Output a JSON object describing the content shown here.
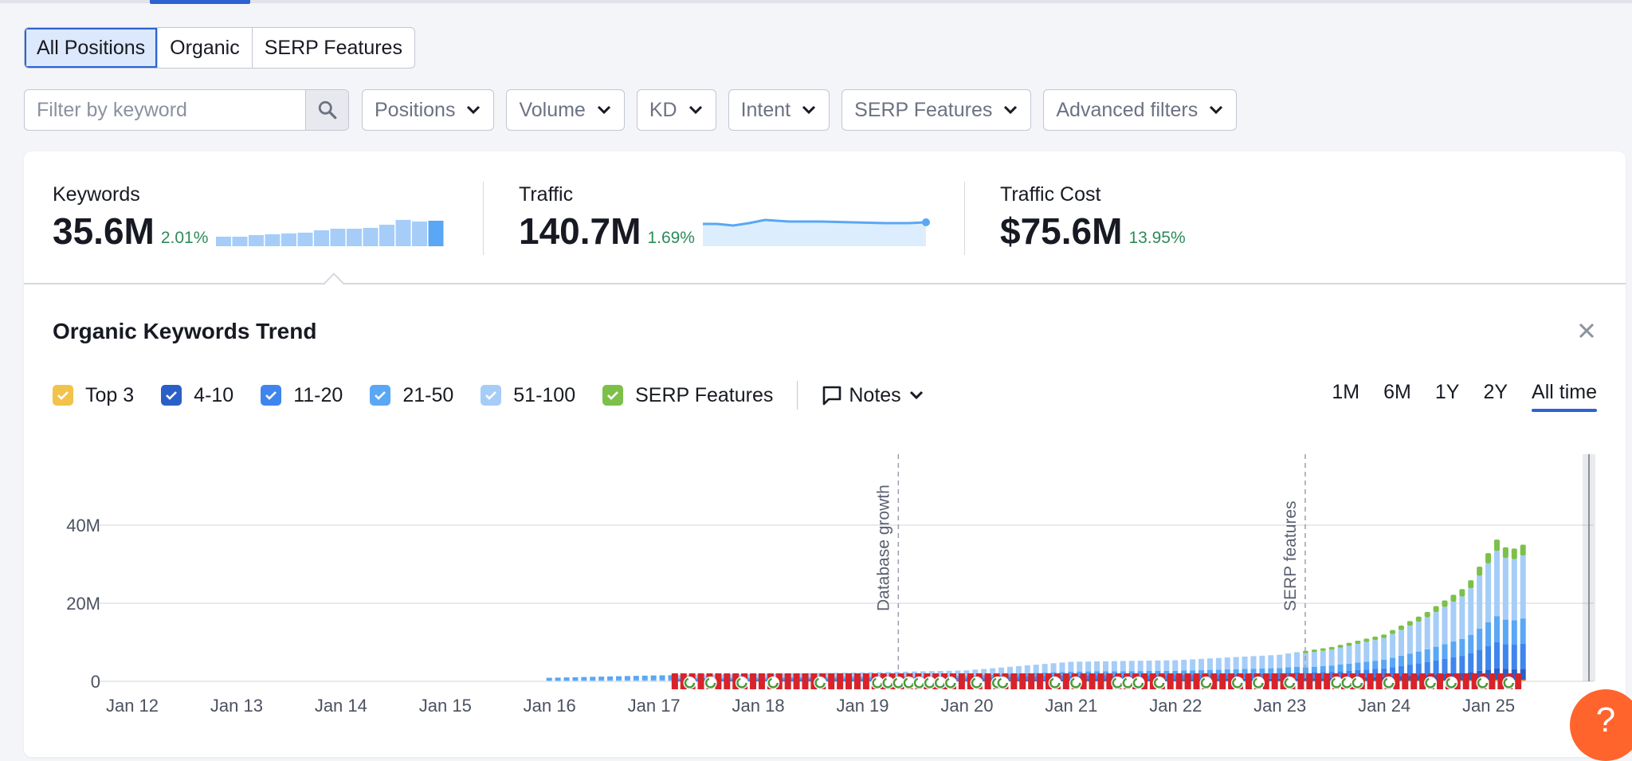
{
  "position_tabs": [
    {
      "label": "All Positions",
      "selected": true
    },
    {
      "label": "Organic",
      "selected": false
    },
    {
      "label": "SERP Features",
      "selected": false
    }
  ],
  "filters": {
    "search_placeholder": "Filter by keyword",
    "dropdowns": [
      "Positions",
      "Volume",
      "KD",
      "Intent",
      "SERP Features",
      "Advanced filters"
    ]
  },
  "metrics": {
    "keywords": {
      "label": "Keywords",
      "value": "35.6M",
      "delta": "2.01%"
    },
    "traffic": {
      "label": "Traffic",
      "value": "140.7M",
      "delta": "1.69%"
    },
    "traffic_cost": {
      "label": "Traffic Cost",
      "value": "$75.6M",
      "delta": "13.95%"
    }
  },
  "colors": {
    "accent": "#2d62d2",
    "positive": "#2c8b5a",
    "top3": "#f2c34a",
    "pos_4_10": "#2a5fc7",
    "pos_11_20": "#3f85ee",
    "pos_21_50": "#5aa7f5",
    "pos_51_100": "#a6cdf8",
    "serp_features": "#7cc04a",
    "help": "#ff642d"
  },
  "trend": {
    "title": "Organic Keywords Trend",
    "legend": [
      {
        "label": "Top 3",
        "color": "#f2c34a"
      },
      {
        "label": "4-10",
        "color": "#2a5fc7"
      },
      {
        "label": "11-20",
        "color": "#3f85ee"
      },
      {
        "label": "21-50",
        "color": "#5aa7f5"
      },
      {
        "label": "51-100",
        "color": "#a6cdf8"
      },
      {
        "label": "SERP Features",
        "color": "#7cc04a"
      }
    ],
    "notes_label": "Notes",
    "ranges": [
      {
        "label": "1M",
        "selected": false
      },
      {
        "label": "6M",
        "selected": false
      },
      {
        "label": "1Y",
        "selected": false
      },
      {
        "label": "2Y",
        "selected": false
      },
      {
        "label": "All time",
        "selected": true
      }
    ]
  },
  "chart_data": {
    "type": "bar",
    "stacked": true,
    "x_labels": [
      "Jan 12",
      "Jan 13",
      "Jan 14",
      "Jan 15",
      "Jan 16",
      "Jan 17",
      "Jan 18",
      "Jan 19",
      "Jan 20",
      "Jan 21",
      "Jan 22",
      "Jan 23",
      "Jan 24",
      "Jan 25"
    ],
    "y_ticks": [
      "0",
      "20M",
      "40M"
    ],
    "ylim": [
      0,
      58
    ],
    "annotations": [
      {
        "label": "Database growth",
        "x": 2019.35
      },
      {
        "label": "SERP features",
        "x": 2023.25
      }
    ],
    "sample_points": [
      {
        "x": 2016.0,
        "total": 0.9
      },
      {
        "x": 2017.0,
        "total": 1.5
      },
      {
        "x": 2019.3,
        "total": 2.4
      },
      {
        "x": 2020.0,
        "total": 2.8
      },
      {
        "x": 2021.0,
        "total": 5.0
      },
      {
        "x": 2022.0,
        "total": 5.4
      },
      {
        "x": 2023.0,
        "total": 6.8
      },
      {
        "x": 2023.5,
        "total": 8.8
      },
      {
        "x": 2024.0,
        "total": 12.0
      },
      {
        "x": 2024.4,
        "total": 17.5
      },
      {
        "x": 2024.8,
        "total": 24.5
      },
      {
        "x": 2025.1,
        "total": 37.0
      },
      {
        "x": 2025.2,
        "total": 33.0
      },
      {
        "x": 2025.3,
        "total": 35.0
      }
    ]
  }
}
